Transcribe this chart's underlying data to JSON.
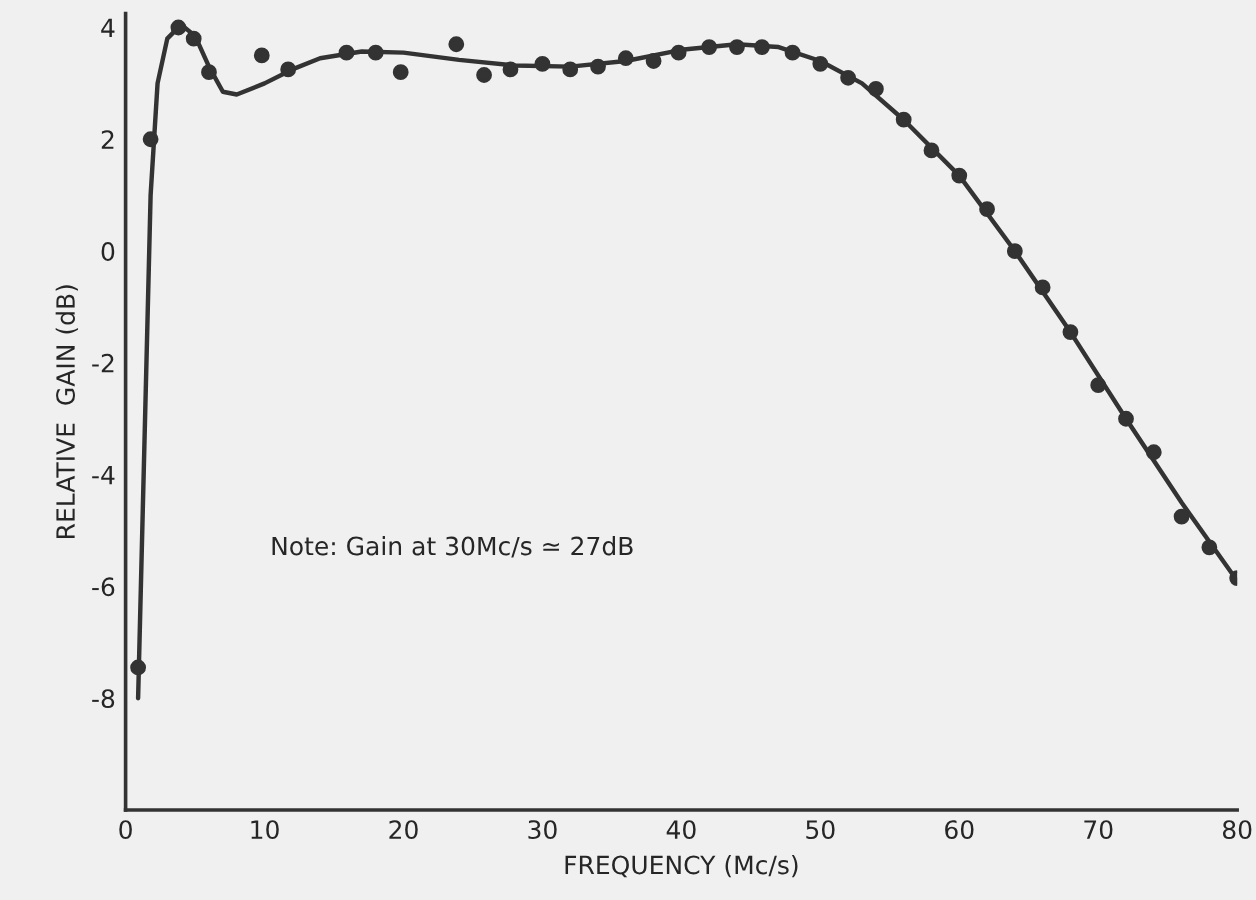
{
  "chart_data": {
    "type": "scatter",
    "xlabel": "FREQUENCY (Mc/s)",
    "ylabel": "RELATIVE  GAIN (dB)",
    "xlim": [
      0,
      80
    ],
    "xticks": [
      0,
      10,
      20,
      30,
      40,
      50,
      60,
      70,
      80
    ],
    "ylim": [
      -10,
      4.25
    ],
    "yticks": [
      -8,
      -6,
      -4,
      -2,
      0,
      2,
      4
    ],
    "grid": false,
    "legend": false,
    "annotations": [
      "Note: Gain at 30Mc/s ≃ 27dB"
    ],
    "series": [
      {
        "color": "#333333",
        "marker": "circle",
        "x": [
          0.9,
          1.8,
          3.8,
          4.9,
          6,
          9.8,
          11.7,
          15.9,
          18,
          19.8,
          23.8,
          25.8,
          27.7,
          30,
          32,
          34,
          36,
          38,
          39.8,
          42,
          44,
          45.8,
          48,
          50,
          52,
          54,
          56,
          58,
          60,
          62,
          64,
          66,
          68,
          70,
          72,
          74,
          76,
          78,
          80
        ],
        "values": [
          -7.45,
          2.0,
          4.0,
          3.8,
          3.2,
          3.5,
          3.25,
          3.55,
          3.55,
          3.2,
          3.7,
          3.15,
          3.25,
          3.35,
          3.25,
          3.3,
          3.45,
          3.4,
          3.55,
          3.65,
          3.65,
          3.65,
          3.55,
          3.35,
          3.1,
          2.9,
          2.35,
          1.8,
          1.35,
          0.75,
          0.0,
          -0.65,
          -1.45,
          -2.4,
          -3.0,
          -3.6,
          -4.75,
          -5.3,
          -5.85
        ]
      },
      {
        "type": "line",
        "color": "#333333",
        "line_style": "solid",
        "x": [
          0.9,
          1.3,
          1.8,
          2.3,
          3,
          4,
          5,
          6,
          7,
          8,
          10,
          12,
          14,
          17,
          20,
          24,
          28,
          32,
          36,
          40,
          44,
          47,
          50,
          53,
          56,
          60,
          64,
          68,
          72,
          76,
          80
        ],
        "values": [
          -8,
          -4,
          1,
          3,
          3.8,
          4.05,
          3.85,
          3.3,
          2.85,
          2.8,
          3.0,
          3.25,
          3.45,
          3.57,
          3.55,
          3.42,
          3.32,
          3.3,
          3.4,
          3.6,
          3.7,
          3.65,
          3.4,
          3.0,
          2.35,
          1.35,
          0.0,
          -1.45,
          -3.0,
          -4.5,
          -5.9
        ]
      }
    ]
  }
}
